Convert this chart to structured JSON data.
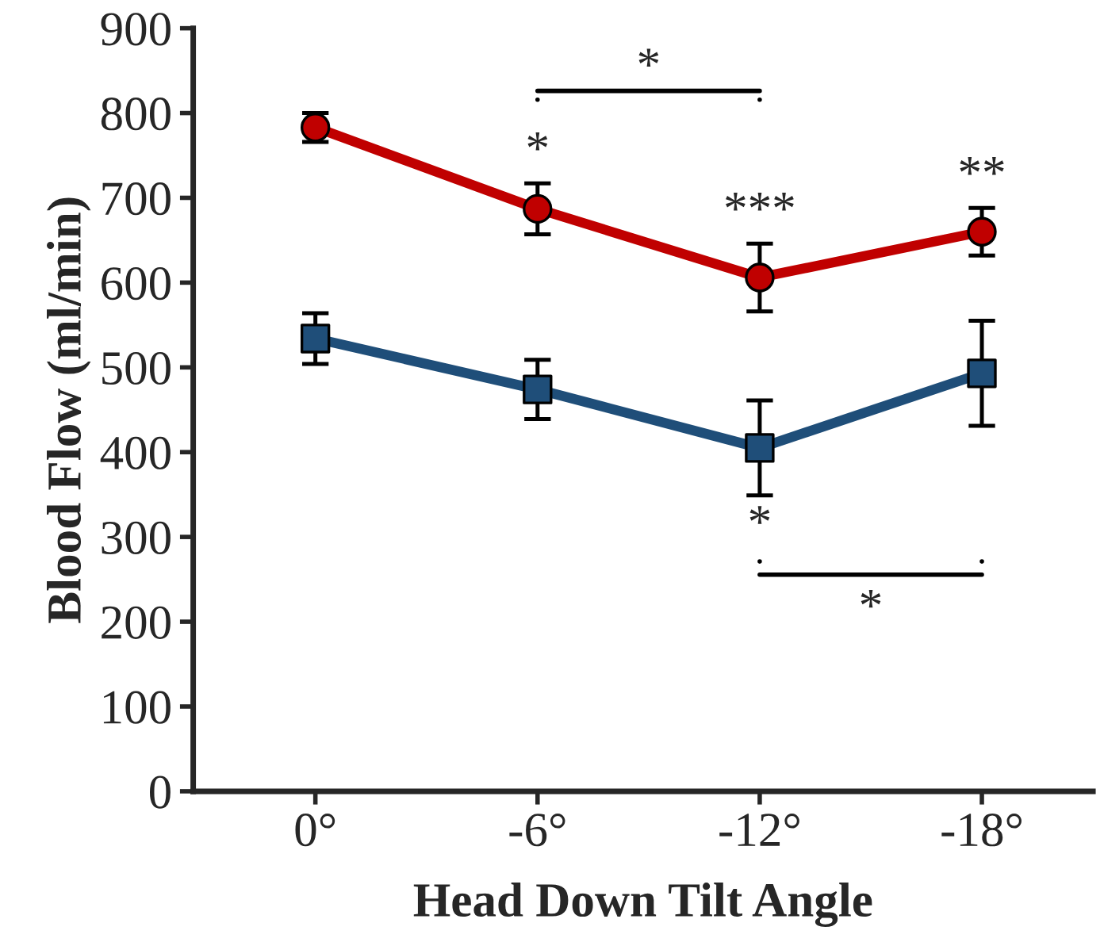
{
  "chart_data": {
    "type": "line",
    "xlabel": "Head Down Tilt Angle",
    "ylabel": "Blood Flow (ml/min)",
    "categories": [
      "0°",
      "-6°",
      "-12°",
      "-18°"
    ],
    "series": [
      {
        "color": "#c00000",
        "marker": "circle",
        "values": [
          783,
          687,
          606,
          660
        ],
        "errors": [
          17,
          30,
          40,
          28
        ]
      },
      {
        "color": "#1f4e79",
        "marker": "square",
        "values": [
          534,
          474,
          405,
          493
        ],
        "errors": [
          30,
          35,
          56,
          62
        ]
      }
    ],
    "annotations": [
      "*",
      "*",
      "***",
      "**",
      "*",
      "*"
    ],
    "ylim": [
      0,
      900
    ],
    "yticks": [
      0,
      100,
      200,
      300,
      400,
      500,
      600,
      700,
      800,
      900
    ],
    "grid": false,
    "legend": false
  }
}
